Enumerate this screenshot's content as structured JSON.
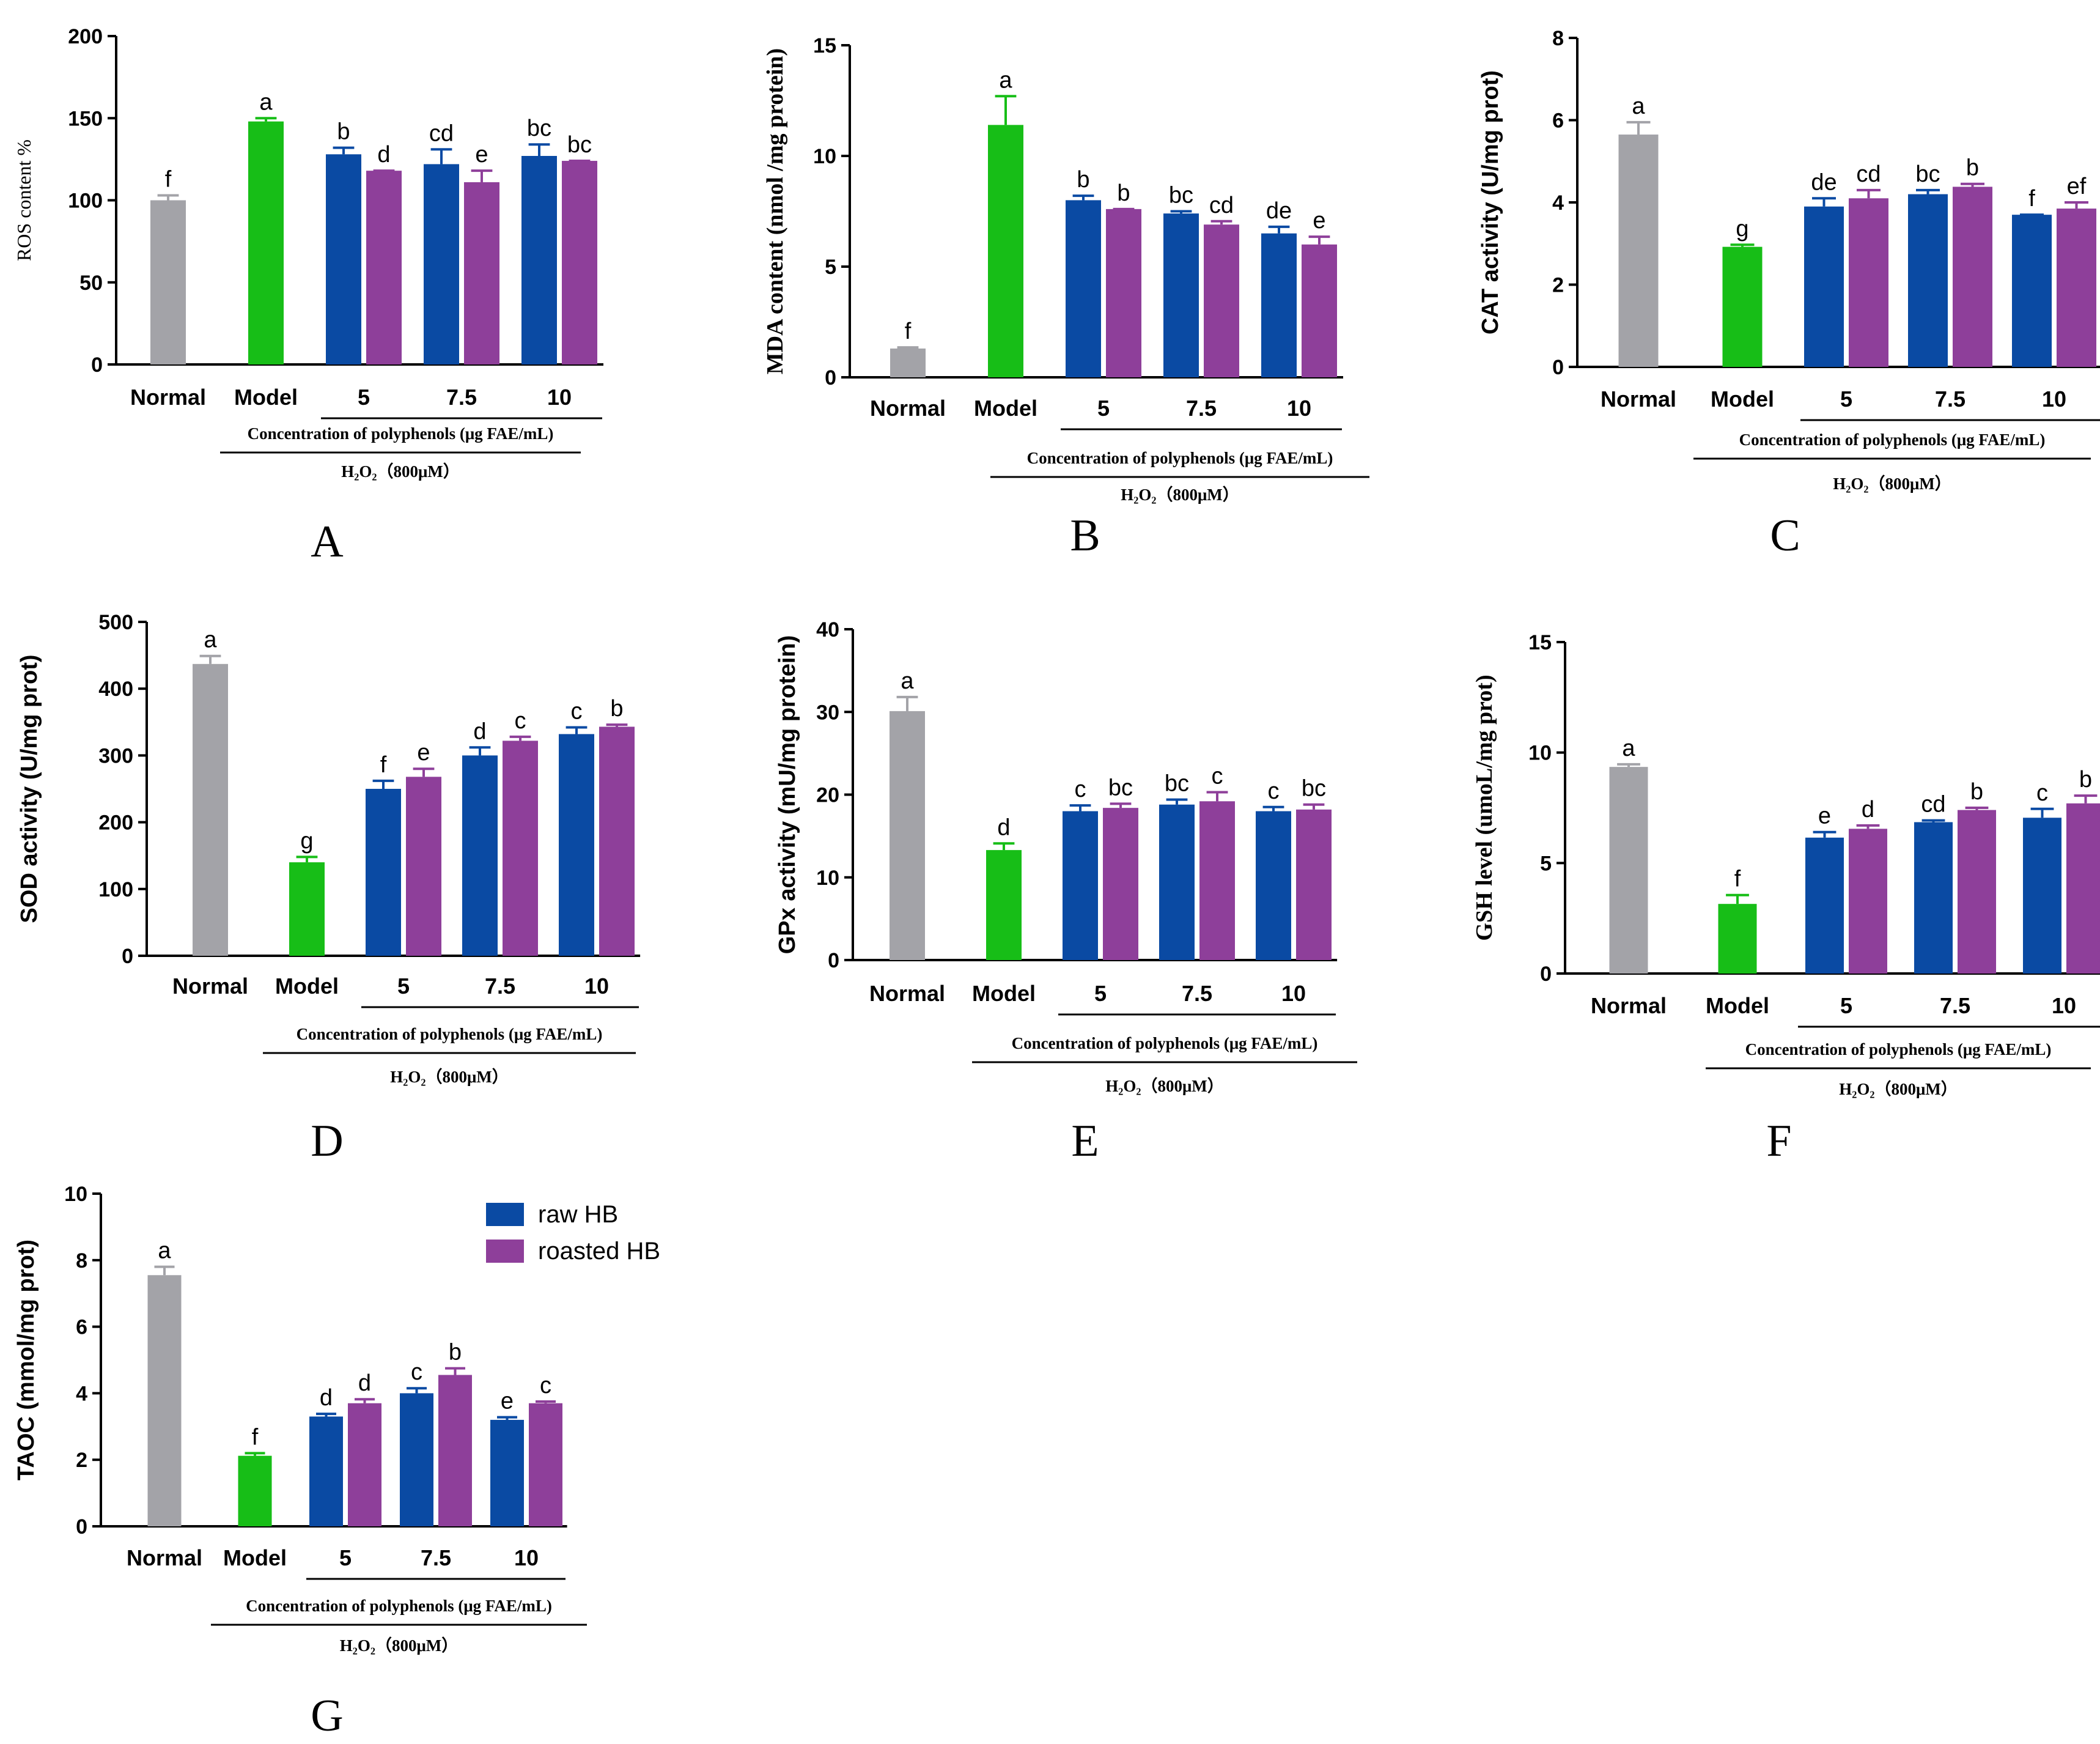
{
  "colors": {
    "normal": "#A3A3A8",
    "model": "#17BE17",
    "raw": "#0A4AA3",
    "roasted": "#8E3F9A",
    "axis": "#000000"
  },
  "common": {
    "categories": [
      "Normal",
      "Model",
      "5",
      "7.5",
      "10"
    ],
    "group_label": "Concentration of polyphenols (μg FAE/mL)",
    "treatment_label": "H₂O₂（800μM）"
  },
  "legend": {
    "entries": [
      {
        "name": "raw HB",
        "color_key": "raw"
      },
      {
        "name": "roasted HB",
        "color_key": "roasted"
      }
    ]
  },
  "chart_data": [
    {
      "type": "bar",
      "panel": "A",
      "title": "",
      "ylabel": "ROS content %",
      "ylabel_style": "serif",
      "ylim": [
        0,
        200
      ],
      "yticks": [
        0,
        50,
        100,
        150,
        200
      ],
      "bars": [
        {
          "group": "Normal",
          "series": "Normal",
          "value": 100,
          "err": 3,
          "letter": "f"
        },
        {
          "group": "Model",
          "series": "Model",
          "value": 148,
          "err": 2,
          "letter": "a"
        },
        {
          "group": "5",
          "series": "raw HB",
          "value": 128,
          "err": 4,
          "letter": "b"
        },
        {
          "group": "5",
          "series": "roasted HB",
          "value": 118,
          "err": 0,
          "letter": "d"
        },
        {
          "group": "7.5",
          "series": "raw HB",
          "value": 122,
          "err": 9,
          "letter": "cd"
        },
        {
          "group": "7.5",
          "series": "roasted HB",
          "value": 111,
          "err": 7,
          "letter": "e"
        },
        {
          "group": "10",
          "series": "raw HB",
          "value": 127,
          "err": 7,
          "letter": "bc"
        },
        {
          "group": "10",
          "series": "roasted HB",
          "value": 124,
          "err": 0,
          "letter": "bc"
        }
      ]
    },
    {
      "type": "bar",
      "panel": "B",
      "title": "",
      "ylabel": "MDA content (nmol /mg protein)",
      "ylabel_style": "serif-bold",
      "ylim": [
        0,
        15
      ],
      "yticks": [
        0,
        5,
        10,
        15
      ],
      "bars": [
        {
          "group": "Normal",
          "series": "Normal",
          "value": 1.3,
          "err": 0.05,
          "letter": "f"
        },
        {
          "group": "Model",
          "series": "Model",
          "value": 11.4,
          "err": 1.3,
          "letter": "a"
        },
        {
          "group": "5",
          "series": "raw HB",
          "value": 8.0,
          "err": 0.2,
          "letter": "b"
        },
        {
          "group": "5",
          "series": "roasted HB",
          "value": 7.6,
          "err": 0.0,
          "letter": "b"
        },
        {
          "group": "7.5",
          "series": "raw HB",
          "value": 7.4,
          "err": 0.1,
          "letter": "bc"
        },
        {
          "group": "7.5",
          "series": "roasted HB",
          "value": 6.9,
          "err": 0.15,
          "letter": "cd"
        },
        {
          "group": "10",
          "series": "raw HB",
          "value": 6.5,
          "err": 0.3,
          "letter": "de"
        },
        {
          "group": "10",
          "series": "roasted HB",
          "value": 6.0,
          "err": 0.35,
          "letter": "e"
        }
      ]
    },
    {
      "type": "bar",
      "panel": "C",
      "title": "",
      "ylabel": "CAT  activity (U/mg prot)",
      "ylabel_style": "sans-bold",
      "ylim": [
        0,
        8
      ],
      "yticks": [
        0,
        2,
        4,
        6,
        8
      ],
      "bars": [
        {
          "group": "Normal",
          "series": "Normal",
          "value": 5.65,
          "err": 0.3,
          "letter": "a"
        },
        {
          "group": "Model",
          "series": "Model",
          "value": 2.92,
          "err": 0.05,
          "letter": "g"
        },
        {
          "group": "5",
          "series": "raw HB",
          "value": 3.9,
          "err": 0.2,
          "letter": "de"
        },
        {
          "group": "5",
          "series": "roasted HB",
          "value": 4.1,
          "err": 0.2,
          "letter": "cd"
        },
        {
          "group": "7.5",
          "series": "raw HB",
          "value": 4.2,
          "err": 0.1,
          "letter": "bc"
        },
        {
          "group": "7.5",
          "series": "roasted HB",
          "value": 4.38,
          "err": 0.07,
          "letter": "b"
        },
        {
          "group": "10",
          "series": "raw HB",
          "value": 3.7,
          "err": 0.0,
          "letter": "f"
        },
        {
          "group": "10",
          "series": "roasted HB",
          "value": 3.85,
          "err": 0.15,
          "letter": "ef"
        }
      ]
    },
    {
      "type": "bar",
      "panel": "D",
      "title": "",
      "ylabel": "SOD activity (U/mg prot)",
      "ylabel_style": "sans-bold",
      "ylim": [
        0,
        500
      ],
      "yticks": [
        0,
        100,
        200,
        300,
        400,
        500
      ],
      "bars": [
        {
          "group": "Normal",
          "series": "Normal",
          "value": 437,
          "err": 12,
          "letter": "a"
        },
        {
          "group": "Model",
          "series": "Model",
          "value": 140,
          "err": 8,
          "letter": "g"
        },
        {
          "group": "5",
          "series": "raw HB",
          "value": 250,
          "err": 12,
          "letter": "f"
        },
        {
          "group": "5",
          "series": "roasted HB",
          "value": 268,
          "err": 12,
          "letter": "e"
        },
        {
          "group": "7.5",
          "series": "raw HB",
          "value": 300,
          "err": 12,
          "letter": "d"
        },
        {
          "group": "7.5",
          "series": "roasted HB",
          "value": 322,
          "err": 6,
          "letter": "c"
        },
        {
          "group": "10",
          "series": "raw HB",
          "value": 332,
          "err": 10,
          "letter": "c"
        },
        {
          "group": "10",
          "series": "roasted HB",
          "value": 343,
          "err": 3,
          "letter": "b"
        }
      ]
    },
    {
      "type": "bar",
      "panel": "E",
      "title": "",
      "ylabel": "GPx activity (mU/mg protein)",
      "ylabel_style": "sans-bold",
      "ylim": [
        0,
        40
      ],
      "yticks": [
        0,
        10,
        20,
        30,
        40
      ],
      "bars": [
        {
          "group": "Normal",
          "series": "Normal",
          "value": 30.1,
          "err": 1.7,
          "letter": "a"
        },
        {
          "group": "Model",
          "series": "Model",
          "value": 13.3,
          "err": 0.8,
          "letter": "d"
        },
        {
          "group": "5",
          "series": "raw HB",
          "value": 18.0,
          "err": 0.7,
          "letter": "c"
        },
        {
          "group": "5",
          "series": "roasted HB",
          "value": 18.4,
          "err": 0.5,
          "letter": "bc"
        },
        {
          "group": "7.5",
          "series": "raw HB",
          "value": 18.8,
          "err": 0.6,
          "letter": "bc"
        },
        {
          "group": "7.5",
          "series": "roasted HB",
          "value": 19.2,
          "err": 1.1,
          "letter": "c"
        },
        {
          "group": "10",
          "series": "raw HB",
          "value": 18.0,
          "err": 0.5,
          "letter": "c"
        },
        {
          "group": "10",
          "series": "roasted HB",
          "value": 18.2,
          "err": 0.6,
          "letter": "bc"
        }
      ]
    },
    {
      "type": "bar",
      "panel": "F",
      "title": "",
      "ylabel": "GSH  level (umoL/mg prot)",
      "ylabel_style": "serif-bold",
      "ylim": [
        0,
        15
      ],
      "yticks": [
        0,
        5,
        10,
        15
      ],
      "bars": [
        {
          "group": "Normal",
          "series": "Normal",
          "value": 9.35,
          "err": 0.12,
          "letter": "a"
        },
        {
          "group": "Model",
          "series": "Model",
          "value": 3.15,
          "err": 0.4,
          "letter": "f"
        },
        {
          "group": "5",
          "series": "raw HB",
          "value": 6.15,
          "err": 0.25,
          "letter": "e"
        },
        {
          "group": "5",
          "series": "roasted HB",
          "value": 6.55,
          "err": 0.15,
          "letter": "d"
        },
        {
          "group": "7.5",
          "series": "raw HB",
          "value": 6.85,
          "err": 0.08,
          "letter": "cd"
        },
        {
          "group": "7.5",
          "series": "roasted HB",
          "value": 7.4,
          "err": 0.1,
          "letter": "b"
        },
        {
          "group": "10",
          "series": "raw HB",
          "value": 7.05,
          "err": 0.4,
          "letter": "c"
        },
        {
          "group": "10",
          "series": "roasted HB",
          "value": 7.7,
          "err": 0.35,
          "letter": "b"
        }
      ]
    },
    {
      "type": "bar",
      "panel": "G",
      "title": "",
      "ylabel": "TAOC (mmol/mg prot)",
      "ylabel_style": "sans-bold",
      "ylim": [
        0,
        10
      ],
      "yticks": [
        0,
        2,
        4,
        6,
        8,
        10
      ],
      "bars": [
        {
          "group": "Normal",
          "series": "Normal",
          "value": 7.55,
          "err": 0.25,
          "letter": "a"
        },
        {
          "group": "Model",
          "series": "Model",
          "value": 2.12,
          "err": 0.08,
          "letter": "f"
        },
        {
          "group": "5",
          "series": "raw HB",
          "value": 3.3,
          "err": 0.08,
          "letter": "d"
        },
        {
          "group": "5",
          "series": "roasted HB",
          "value": 3.7,
          "err": 0.12,
          "letter": "d"
        },
        {
          "group": "7.5",
          "series": "raw HB",
          "value": 4.0,
          "err": 0.15,
          "letter": "c"
        },
        {
          "group": "7.5",
          "series": "roasted HB",
          "value": 4.55,
          "err": 0.2,
          "letter": "b"
        },
        {
          "group": "10",
          "series": "raw HB",
          "value": 3.2,
          "err": 0.08,
          "letter": "e"
        },
        {
          "group": "10",
          "series": "roasted HB",
          "value": 3.7,
          "err": 0.05,
          "letter": "c"
        }
      ]
    }
  ]
}
